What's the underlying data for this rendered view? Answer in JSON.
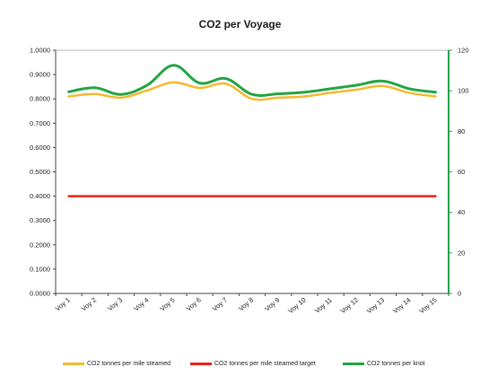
{
  "chart_data": {
    "type": "line",
    "title": "CO2 per Voyage",
    "categories": [
      "Voy 1",
      "Voy 2",
      "Voy 3",
      "Voy 4",
      "Voy 5",
      "Voy 6",
      "Voy 7",
      "Voy 8",
      "Voy 9",
      "Voy 10",
      "Voy 11",
      "Voy 12",
      "Voy 13",
      "Voy 14",
      "Voy 15"
    ],
    "y_left": {
      "ylim": [
        0,
        1.0
      ],
      "ticks": [
        "0.0000",
        "0.1000",
        "0.2000",
        "0.3000",
        "0.4000",
        "0.5000",
        "0.6000",
        "0.7000",
        "0.8000",
        "0.9000",
        "1.0000"
      ]
    },
    "y_right": {
      "ylim": [
        0,
        120
      ],
      "ticks": [
        "0",
        "20",
        "40",
        "60",
        "80",
        "100",
        "120"
      ],
      "color": "#22a444"
    },
    "series": [
      {
        "name": "CO2 tonnes per mile steamed",
        "axis": "left",
        "color": "#f5b82e",
        "values": [
          0.81,
          0.82,
          0.805,
          0.835,
          0.868,
          0.845,
          0.862,
          0.8,
          0.805,
          0.81,
          0.825,
          0.838,
          0.853,
          0.825,
          0.81
        ]
      },
      {
        "name": "CO2 tonnes per mile steamed target",
        "axis": "left",
        "color": "#e8231c",
        "values": [
          0.4,
          0.4,
          0.4,
          0.4,
          0.4,
          0.4,
          0.4,
          0.4,
          0.4,
          0.4,
          0.4,
          0.4,
          0.4,
          0.4,
          0.4
        ]
      },
      {
        "name": "CO2 tonnes per knot",
        "axis": "right",
        "color": "#22a444",
        "values": [
          99.5,
          101.5,
          98.2,
          102.8,
          112.6,
          103.8,
          106.0,
          98.2,
          98.5,
          99.3,
          101.0,
          102.8,
          104.8,
          101.0,
          99.3
        ]
      }
    ],
    "legend_position": "bottom",
    "grid": false
  }
}
